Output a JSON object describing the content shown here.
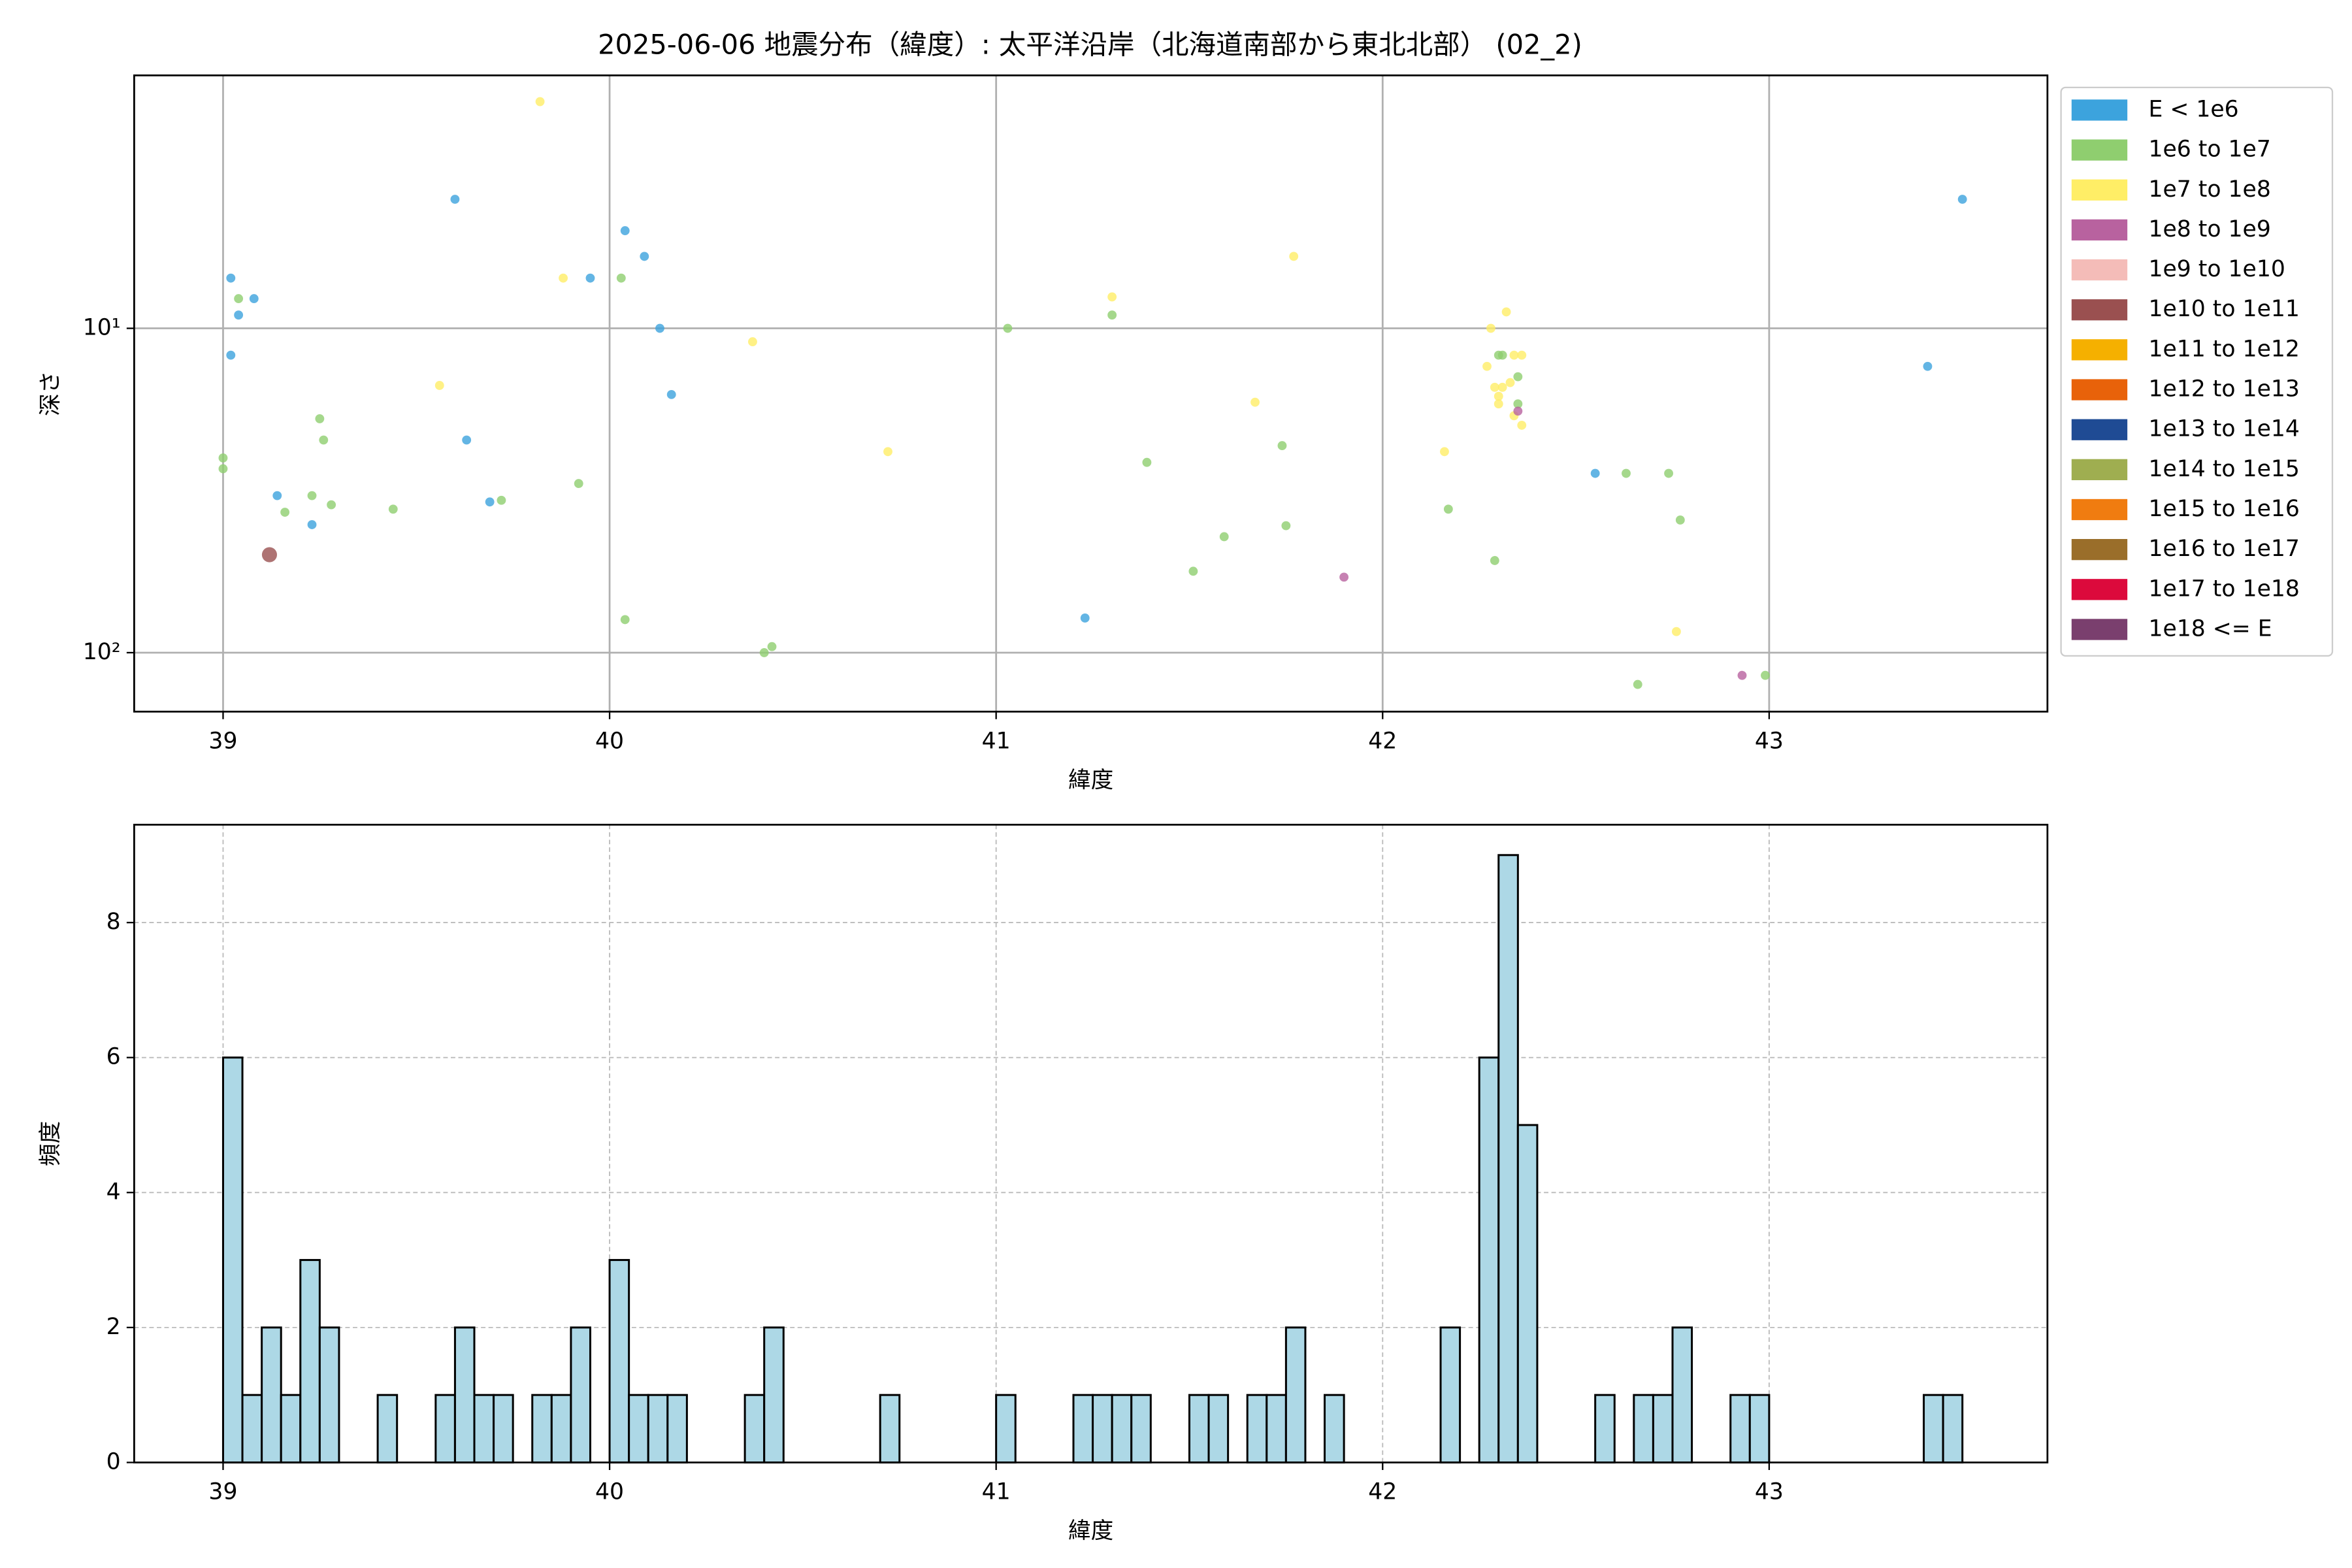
{
  "chart_data": [
    {
      "type": "scatter",
      "title": "2025-06-06 地震分布（緯度）: 太平洋沿岸（北海道南部から東北北部） (02_2)",
      "x_label": "緯度",
      "y_label": "深さ",
      "xlim": [
        38.77,
        43.72
      ],
      "xticks": [
        39,
        40,
        41,
        42,
        43
      ],
      "ylim": [
        1.66,
        152
      ],
      "y_log": true,
      "y_inverted": true,
      "yticks": [
        {
          "value": 10,
          "label": "10¹"
        },
        {
          "value": 100,
          "label": "10²"
        }
      ],
      "grid": true,
      "grid_style": "solid",
      "legend": "outside-right",
      "series": [
        {
          "name": "E < 1e6",
          "color": "#3ca3dd",
          "marker_size": 3,
          "x": [
            39.02,
            39.02,
            39.04,
            39.08,
            39.14,
            39.23,
            39.6,
            39.63,
            39.69,
            39.95,
            40.04,
            40.09,
            40.13,
            40.16,
            41.23,
            42.55,
            43.41,
            43.5
          ],
          "values": [
            7.0,
            12.1,
            9.1,
            8.1,
            32.8,
            40.3,
            4.0,
            22.1,
            34.3,
            7.0,
            5.0,
            6.0,
            10,
            16.0,
            78.2,
            28.0,
            13.1,
            4.0
          ]
        },
        {
          "name": "1e6 to 1e7",
          "color": "#8fce6f",
          "marker_size": 3,
          "x": [
            39.0,
            39.0,
            39.04,
            39.16,
            39.23,
            39.25,
            39.26,
            39.28,
            39.44,
            39.72,
            39.92,
            40.03,
            40.04,
            40.4,
            40.42,
            41.03,
            41.3,
            41.39,
            41.51,
            41.59,
            41.74,
            41.75,
            42.17,
            42.29,
            42.3,
            42.31,
            42.35,
            42.35,
            42.63,
            42.66,
            42.74,
            42.77,
            42.99
          ],
          "values": [
            25.1,
            27.1,
            8.1,
            36.9,
            32.8,
            19.0,
            22.1,
            35.0,
            36.1,
            33.9,
            30.1,
            7.0,
            79.1,
            100,
            95.8,
            10,
            9.1,
            25.9,
            56.1,
            43.9,
            23.0,
            40.6,
            36.1,
            52.0,
            12.1,
            12.1,
            17.1,
            14.1,
            28.0,
            125.3,
            28.0,
            39.0,
            117.5
          ]
        },
        {
          "name": "1e7 to 1e8",
          "color": "#ffee66",
          "marker_size": 3,
          "x": [
            39.82,
            39.88,
            39.56,
            40.37,
            40.72,
            41.3,
            41.77,
            41.67,
            42.16,
            42.28,
            42.27,
            42.32,
            42.34,
            42.36,
            42.29,
            42.31,
            42.33,
            42.3,
            42.3,
            42.34,
            42.36,
            42.76
          ],
          "values": [
            2.0,
            7.0,
            15.0,
            11.0,
            24.0,
            8.0,
            6.0,
            16.9,
            24.0,
            10,
            13.1,
            8.9,
            12.1,
            12.1,
            15.2,
            15.2,
            14.7,
            16.2,
            17.1,
            18.6,
            19.9,
            86.1
          ]
        },
        {
          "name": "1e8 to 1e9",
          "color": "#b8629f",
          "marker_size": 3,
          "x": [
            41.9,
            42.93,
            42.35
          ],
          "values": [
            58.5,
            117.5,
            18.0
          ]
        },
        {
          "name": "1e9 to 1e10",
          "color": "#f4bcb8",
          "marker_size": 3,
          "x": [],
          "values": []
        },
        {
          "name": "1e10 to 1e11",
          "color": "#9a5050",
          "marker_size": 5,
          "x": [
            39.12
          ],
          "values": [
            49.9
          ]
        },
        {
          "name": "1e11 to 1e12",
          "color": "#f5b000",
          "marker_size": 3,
          "x": [],
          "values": []
        },
        {
          "name": "1e12 to 1e13",
          "color": "#e8620a",
          "marker_size": 3,
          "x": [],
          "values": []
        },
        {
          "name": "1e13 to 1e14",
          "color": "#1f4b94",
          "marker_size": 3,
          "x": [],
          "values": []
        },
        {
          "name": "1e14 to 1e15",
          "color": "#9fae50",
          "marker_size": 3,
          "x": [],
          "values": []
        },
        {
          "name": "1e15 to 1e16",
          "color": "#f07c10",
          "marker_size": 3,
          "x": [],
          "values": []
        },
        {
          "name": "1e16 to 1e17",
          "color": "#9a6e2a",
          "marker_size": 3,
          "x": [],
          "values": []
        },
        {
          "name": "1e17 to 1e18",
          "color": "#dc0a3c",
          "marker_size": 3,
          "x": [],
          "values": []
        },
        {
          "name": "1e18 <= E",
          "color": "#7a3f6e",
          "marker_size": 3,
          "x": [],
          "values": []
        }
      ]
    },
    {
      "type": "histogram",
      "x_label": "緯度",
      "y_label": "頻度",
      "xlim": [
        38.77,
        43.72
      ],
      "xticks": [
        39,
        40,
        41,
        42,
        43
      ],
      "ylim": [
        0,
        9.45
      ],
      "yticks": [
        0,
        2,
        4,
        6,
        8
      ],
      "grid": true,
      "grid_style": "dashed",
      "color": "#add8e6",
      "edge_color": "#000000",
      "bins": [
        39.0,
        39.05,
        39.1,
        39.15,
        39.2,
        39.25,
        39.3,
        39.35,
        39.4,
        39.45,
        39.5,
        39.55,
        39.6,
        39.65,
        39.7,
        39.75,
        39.8,
        39.85,
        39.9,
        39.95,
        40.0,
        40.05,
        40.1,
        40.15,
        40.2,
        40.25,
        40.3,
        40.35,
        40.4,
        40.45,
        40.5,
        40.55,
        40.6,
        40.65,
        40.7,
        40.75,
        40.8,
        40.85,
        40.9,
        40.95,
        41.0,
        41.05,
        41.1,
        41.15,
        41.2,
        41.25,
        41.3,
        41.35,
        41.4,
        41.45,
        41.5,
        41.55,
        41.6,
        41.65,
        41.7,
        41.75,
        41.8,
        41.85,
        41.9,
        41.95,
        42.0,
        42.05,
        42.1,
        42.15,
        42.2,
        42.25,
        42.3,
        42.35,
        42.4,
        42.45,
        42.5,
        42.55,
        42.6,
        42.65,
        42.7,
        42.75,
        42.8,
        42.85,
        42.9,
        42.95,
        43.0,
        43.05,
        43.1,
        43.15,
        43.2,
        43.25,
        43.3,
        43.35,
        43.4,
        43.45,
        43.5
      ],
      "values": [
        6,
        1,
        2,
        1,
        3,
        2,
        0,
        0,
        1,
        0,
        0,
        1,
        2,
        1,
        1,
        0,
        1,
        1,
        2,
        0,
        3,
        1,
        1,
        1,
        0,
        0,
        0,
        1,
        2,
        0,
        0,
        0,
        0,
        0,
        1,
        0,
        0,
        0,
        0,
        0,
        1,
        0,
        0,
        0,
        1,
        1,
        1,
        1,
        0,
        0,
        1,
        1,
        0,
        1,
        1,
        2,
        0,
        1,
        0,
        0,
        0,
        0,
        0,
        2,
        0,
        6,
        9,
        5,
        0,
        0,
        0,
        1,
        0,
        1,
        1,
        2,
        0,
        0,
        1,
        1,
        0,
        0,
        0,
        0,
        0,
        0,
        0,
        0,
        1,
        1
      ]
    }
  ]
}
